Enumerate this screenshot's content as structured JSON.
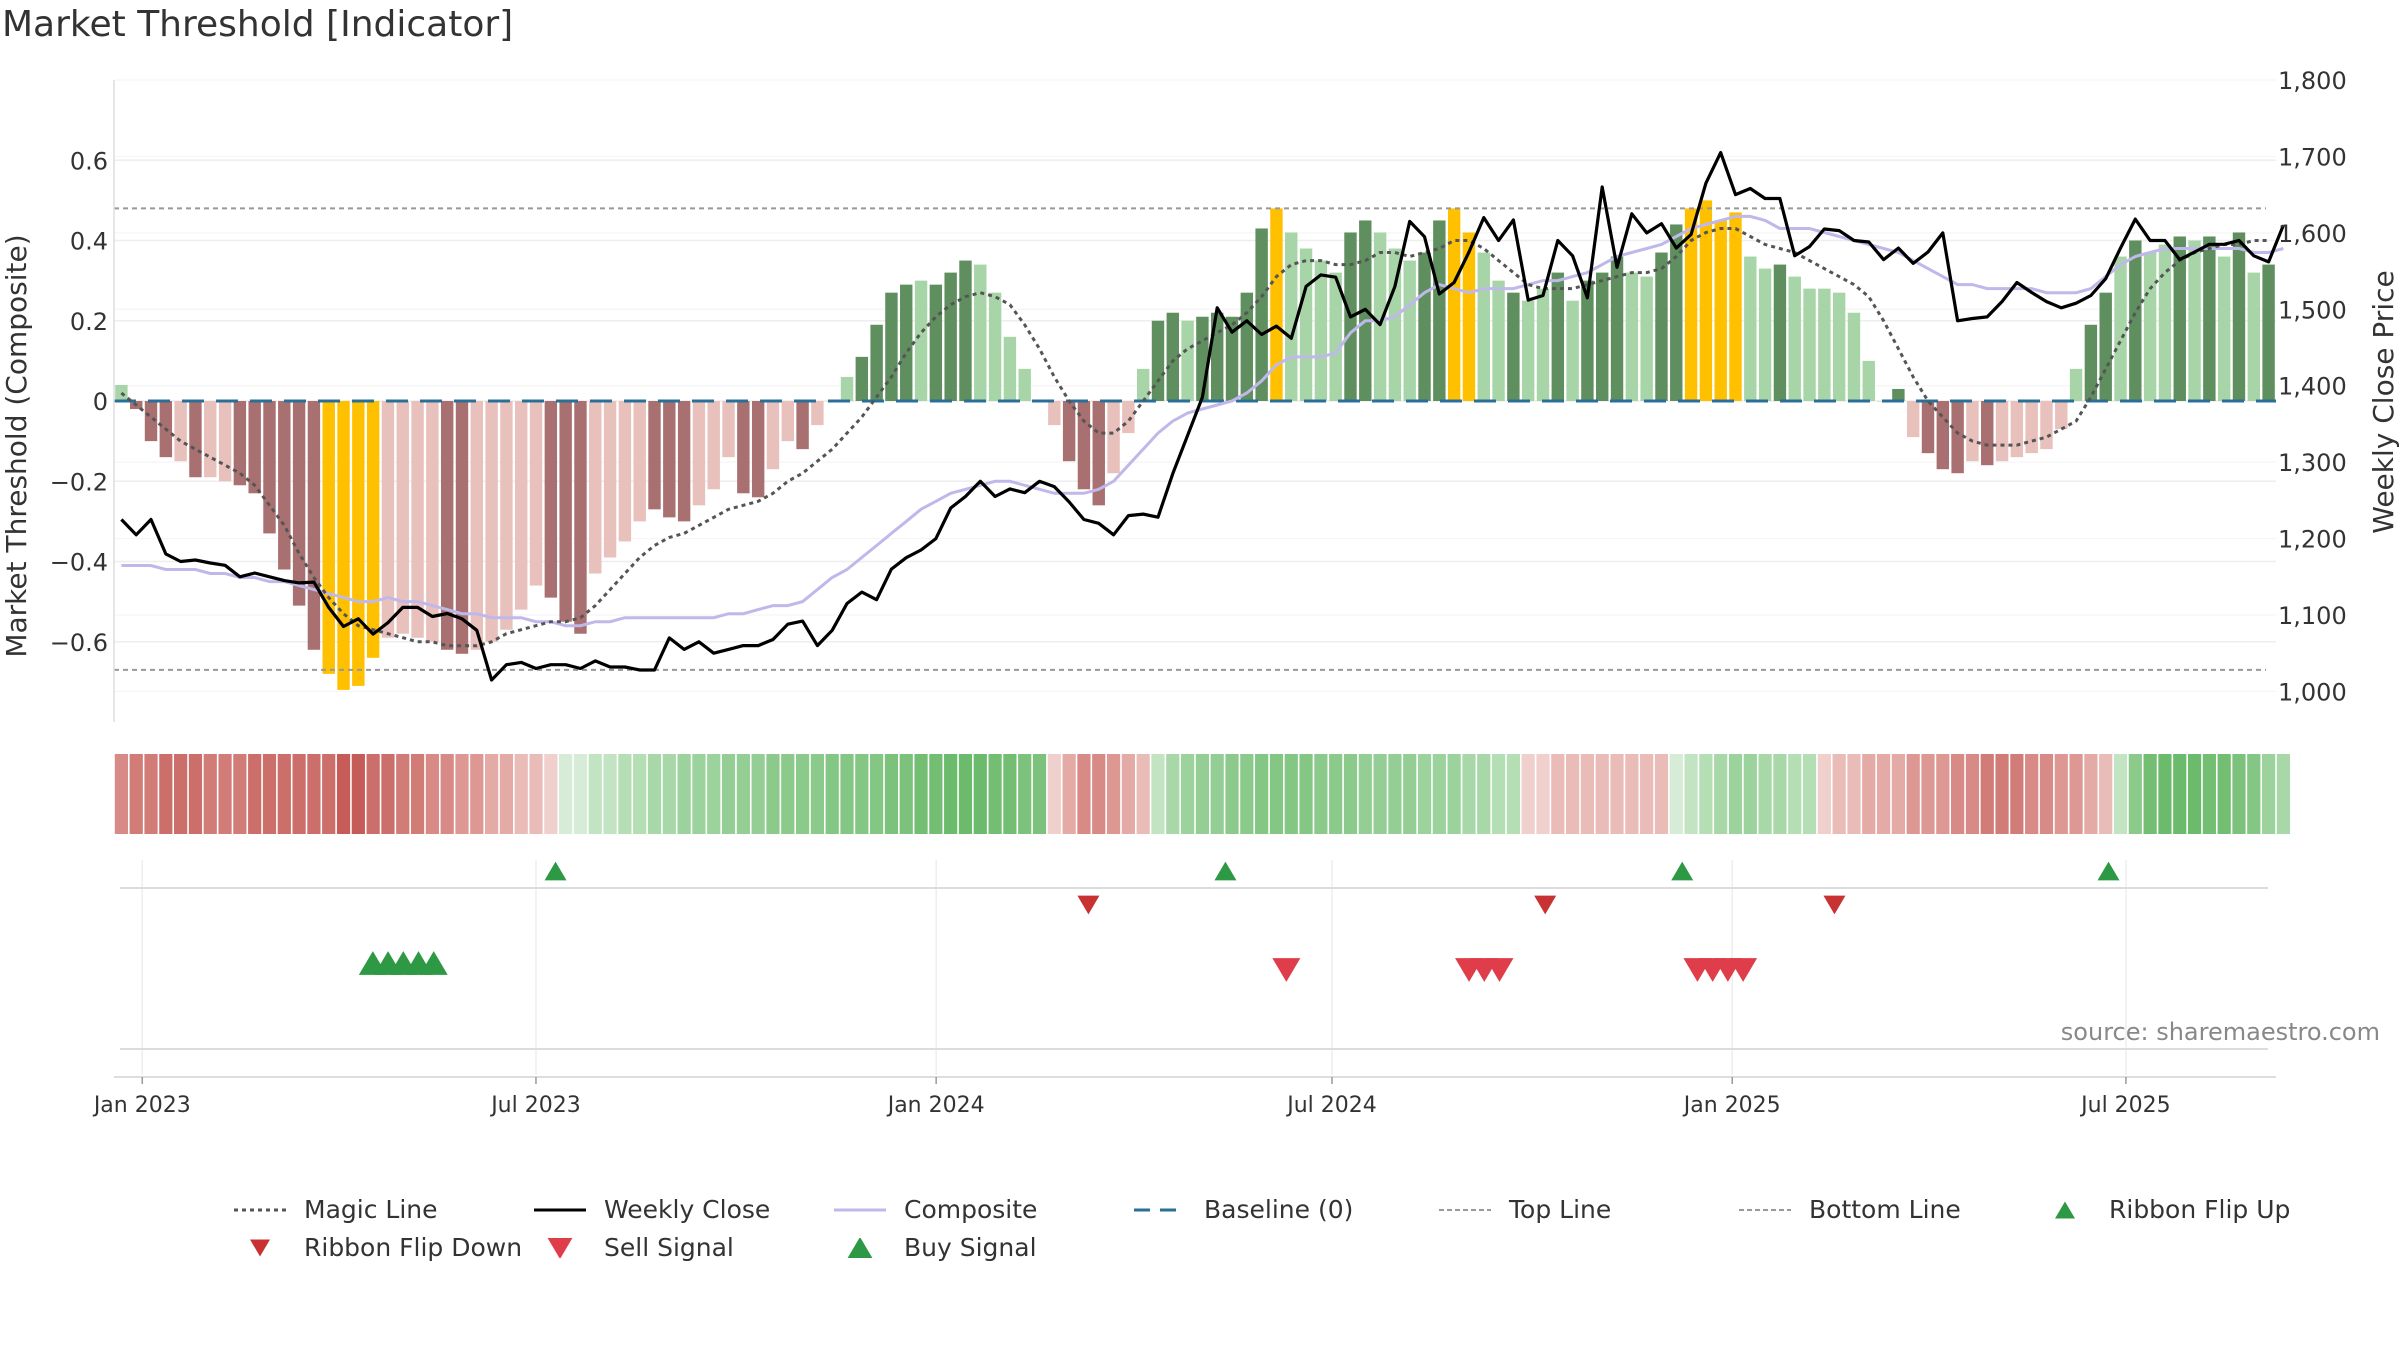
{
  "chart_data": {
    "type": "bar",
    "title": "Market Threshold [Indicator]",
    "source": "source: sharemaestro.com",
    "y_left": {
      "label": "Market Threshold (Composite)",
      "range": [
        -0.8,
        0.8
      ],
      "ticks": [
        0.6,
        0.4,
        0.2,
        0,
        -0.2,
        -0.4,
        -0.6
      ],
      "tick_labels": [
        "0.6",
        "0.4",
        "0.2",
        "0",
        "−0.2",
        "−0.4",
        "−0.6"
      ]
    },
    "y_right": {
      "label": "Weekly Close Price",
      "range": [
        960,
        1800
      ],
      "ticks": [
        1000,
        1100,
        1200,
        1300,
        1400,
        1500,
        1600,
        1700,
        1800
      ],
      "tick_labels": [
        "1,000",
        "1,100",
        "1,200",
        "1,300",
        "1,400",
        "1,500",
        "1,600",
        "1,700",
        "1,800"
      ]
    },
    "x_axis": {
      "start": "2022-12-19",
      "end": "2025-09-08",
      "ticks": [
        "2023-01-01",
        "2023-07-01",
        "2024-01-01",
        "2024-07-01",
        "2025-01-01",
        "2025-07-01"
      ],
      "tick_labels": [
        "Jan 2023",
        "Jul 2023",
        "Jan 2024",
        "Jul 2024",
        "Jan 2025",
        "Jul 2025"
      ]
    },
    "top_line": 0.48,
    "bottom_line": -0.67,
    "composite_bars": [
      0.04,
      -0.02,
      -0.1,
      -0.14,
      -0.15,
      -0.19,
      -0.19,
      -0.2,
      -0.21,
      -0.23,
      -0.33,
      -0.42,
      -0.51,
      -0.62,
      -0.68,
      -0.72,
      -0.71,
      -0.64,
      -0.59,
      -0.58,
      -0.59,
      -0.6,
      -0.62,
      -0.63,
      -0.62,
      -0.6,
      -0.57,
      -0.52,
      -0.46,
      -0.49,
      -0.55,
      -0.58,
      -0.43,
      -0.39,
      -0.35,
      -0.3,
      -0.27,
      -0.29,
      -0.3,
      -0.26,
      -0.22,
      -0.14,
      -0.23,
      -0.24,
      -0.17,
      -0.1,
      -0.12,
      -0.06,
      0.0,
      0.06,
      0.11,
      0.19,
      0.27,
      0.29,
      0.3,
      0.29,
      0.32,
      0.35,
      0.34,
      0.27,
      0.16,
      0.08,
      0.0,
      -0.06,
      -0.15,
      -0.22,
      -0.26,
      -0.18,
      -0.08,
      0.08,
      0.2,
      0.22,
      0.2,
      0.21,
      0.22,
      0.21,
      0.27,
      0.43,
      0.48,
      0.42,
      0.38,
      0.35,
      0.32,
      0.42,
      0.45,
      0.42,
      0.38,
      0.35,
      0.37,
      0.45,
      0.48,
      0.42,
      0.37,
      0.3,
      0.27,
      0.25,
      0.28,
      0.32,
      0.25,
      0.3,
      0.32,
      0.36,
      0.32,
      0.31,
      0.37,
      0.44,
      0.48,
      0.5,
      0.45,
      0.47,
      0.36,
      0.33,
      0.34,
      0.31,
      0.28,
      0.28,
      0.27,
      0.22,
      0.1,
      0.0,
      0.03,
      -0.09,
      -0.13,
      -0.17,
      -0.18,
      -0.15,
      -0.16,
      -0.15,
      -0.14,
      -0.13,
      -0.12,
      -0.07,
      0.08,
      0.19,
      0.27,
      0.36,
      0.4,
      0.37,
      0.39,
      0.41,
      0.4,
      0.41,
      0.36,
      0.42,
      0.32,
      0.34
    ],
    "bar_colors": [
      "#a8d5a8",
      "#a87070",
      "#a87070",
      "#a87070",
      "#e8c0bc",
      "#a87070",
      "#e8c0bc",
      "#e8c0bc",
      "#a87070",
      "#a87070",
      "#a87070",
      "#a87070",
      "#a87070",
      "#a87070",
      "#ffc000",
      "#ffc000",
      "#ffc000",
      "#ffc000",
      "#e8c0bc",
      "#e8c0bc",
      "#e8c0bc",
      "#e8c0bc",
      "#a87070",
      "#a87070",
      "#e8c0bc",
      "#e8c0bc",
      "#e8c0bc",
      "#e8c0bc",
      "#e8c0bc",
      "#a87070",
      "#a87070",
      "#a87070",
      "#e8c0bc",
      "#e8c0bc",
      "#e8c0bc",
      "#e8c0bc",
      "#a87070",
      "#a87070",
      "#a87070",
      "#e8c0bc",
      "#e8c0bc",
      "#e8c0bc",
      "#a87070",
      "#a87070",
      "#e8c0bc",
      "#e8c0bc",
      "#a87070",
      "#e8c0bc",
      "#a8d5a8",
      "#a8d5a8",
      "#5f8f5f",
      "#5f8f5f",
      "#5f8f5f",
      "#5f8f5f",
      "#a8d5a8",
      "#5f8f5f",
      "#5f8f5f",
      "#5f8f5f",
      "#a8d5a8",
      "#a8d5a8",
      "#a8d5a8",
      "#a8d5a8",
      "#a8d5a8",
      "#e8c0bc",
      "#a87070",
      "#a87070",
      "#a87070",
      "#e8c0bc",
      "#e8c0bc",
      "#a8d5a8",
      "#5f8f5f",
      "#5f8f5f",
      "#a8d5a8",
      "#5f8f5f",
      "#5f8f5f",
      "#5f8f5f",
      "#5f8f5f",
      "#5f8f5f",
      "#ffc000",
      "#a8d5a8",
      "#a8d5a8",
      "#a8d5a8",
      "#a8d5a8",
      "#5f8f5f",
      "#5f8f5f",
      "#a8d5a8",
      "#a8d5a8",
      "#a8d5a8",
      "#5f8f5f",
      "#5f8f5f",
      "#ffc000",
      "#ffc000",
      "#a8d5a8",
      "#a8d5a8",
      "#5f8f5f",
      "#a8d5a8",
      "#a8d5a8",
      "#5f8f5f",
      "#a8d5a8",
      "#5f8f5f",
      "#5f8f5f",
      "#5f8f5f",
      "#a8d5a8",
      "#a8d5a8",
      "#5f8f5f",
      "#5f8f5f",
      "#ffc000",
      "#ffc000",
      "#ffc000",
      "#ffc000",
      "#a8d5a8",
      "#a8d5a8",
      "#5f8f5f",
      "#a8d5a8",
      "#a8d5a8",
      "#a8d5a8",
      "#a8d5a8",
      "#a8d5a8",
      "#a8d5a8",
      "#a8d5a8",
      "#5f8f5f",
      "#e8c0bc",
      "#a87070",
      "#a87070",
      "#a87070",
      "#e8c0bc",
      "#a87070",
      "#e8c0bc",
      "#e8c0bc",
      "#e8c0bc",
      "#e8c0bc",
      "#e8c0bc",
      "#a8d5a8",
      "#5f8f5f",
      "#5f8f5f",
      "#a8d5a8",
      "#5f8f5f",
      "#a8d5a8",
      "#a8d5a8",
      "#5f8f5f",
      "#a8d5a8",
      "#5f8f5f",
      "#a8d5a8",
      "#5f8f5f",
      "#a8d5a8",
      "#5f8f5f"
    ],
    "ribbon_colors": [
      "#d88a86",
      "#d27c78",
      "#d27c78",
      "#cc6e6a",
      "#cc6e6a",
      "#cc6e6a",
      "#d27c78",
      "#d27c78",
      "#d27c78",
      "#cc6e6a",
      "#cc6e6a",
      "#cc6e6a",
      "#cc6e6a",
      "#cc6e6a",
      "#cc6e6a",
      "#c65c58",
      "#c65c58",
      "#cc6e6a",
      "#cc6e6a",
      "#d27c78",
      "#d27c78",
      "#d88a86",
      "#d88a86",
      "#de9894",
      "#de9894",
      "#e4aaa6",
      "#e4aaa6",
      "#eabcb8",
      "#eabcb8",
      "#f0d0cc",
      "#d6ecd6",
      "#d6ecd6",
      "#c2e4c2",
      "#c2e4c2",
      "#b4deb4",
      "#b4deb4",
      "#a8d8a8",
      "#a8d8a8",
      "#9cd29c",
      "#9cd29c",
      "#9cd29c",
      "#94ce94",
      "#94ce94",
      "#94ce94",
      "#8cca8c",
      "#8cca8c",
      "#8cca8c",
      "#8cca8c",
      "#84c684",
      "#84c684",
      "#84c684",
      "#84c684",
      "#7cc27c",
      "#7cc27c",
      "#74be74",
      "#74be74",
      "#6cba6c",
      "#6cba6c",
      "#6cba6c",
      "#74be74",
      "#74be74",
      "#7cc27c",
      "#7cc27c",
      "#f0d0cc",
      "#e4aaa6",
      "#d88a86",
      "#d88a86",
      "#de9894",
      "#e4aaa6",
      "#eabcb8",
      "#c2e4c2",
      "#a8d8a8",
      "#9cd29c",
      "#94ce94",
      "#94ce94",
      "#8cca8c",
      "#8cca8c",
      "#84c684",
      "#84c684",
      "#84c684",
      "#84c684",
      "#8cca8c",
      "#8cca8c",
      "#8cca8c",
      "#94ce94",
      "#94ce94",
      "#94ce94",
      "#94ce94",
      "#9cd29c",
      "#9cd29c",
      "#9cd29c",
      "#a8d8a8",
      "#a8d8a8",
      "#b4deb4",
      "#b4deb4",
      "#f0d0cc",
      "#f0d0cc",
      "#eabcb8",
      "#eabcb8",
      "#eabcb8",
      "#eabcb8",
      "#eabcb8",
      "#eabcb8",
      "#eabcb8",
      "#eabcb8",
      "#d6ecd6",
      "#c2e4c2",
      "#b4deb4",
      "#a8d8a8",
      "#9cd29c",
      "#9cd29c",
      "#a8d8a8",
      "#a8d8a8",
      "#b4deb4",
      "#b4deb4",
      "#f0d0cc",
      "#eabcb8",
      "#eabcb8",
      "#e4aaa6",
      "#e4aaa6",
      "#e4aaa6",
      "#de9894",
      "#de9894",
      "#de9894",
      "#d88a86",
      "#d88a86",
      "#d27c78",
      "#d27c78",
      "#d27c78",
      "#d88a86",
      "#d88a86",
      "#de9894",
      "#de9894",
      "#e4aaa6",
      "#eabcb8",
      "#c2e4c2",
      "#8cca8c",
      "#74be74",
      "#6cba6c",
      "#6cba6c",
      "#6cba6c",
      "#74be74",
      "#74be74",
      "#7cc27c",
      "#84c684",
      "#9cd29c",
      "#a8d8a8"
    ],
    "magic_line": [
      0.02,
      -0.01,
      -0.04,
      -0.07,
      -0.1,
      -0.12,
      -0.14,
      -0.16,
      -0.18,
      -0.21,
      -0.26,
      -0.31,
      -0.38,
      -0.44,
      -0.49,
      -0.53,
      -0.56,
      -0.57,
      -0.58,
      -0.59,
      -0.6,
      -0.6,
      -0.61,
      -0.61,
      -0.61,
      -0.6,
      -0.58,
      -0.57,
      -0.56,
      -0.55,
      -0.55,
      -0.54,
      -0.51,
      -0.47,
      -0.43,
      -0.39,
      -0.36,
      -0.34,
      -0.33,
      -0.31,
      -0.29,
      -0.27,
      -0.26,
      -0.25,
      -0.23,
      -0.2,
      -0.18,
      -0.15,
      -0.12,
      -0.08,
      -0.04,
      0.01,
      0.06,
      0.12,
      0.17,
      0.21,
      0.24,
      0.26,
      0.27,
      0.26,
      0.24,
      0.19,
      0.13,
      0.06,
      0.0,
      -0.05,
      -0.08,
      -0.08,
      -0.05,
      0.0,
      0.05,
      0.1,
      0.13,
      0.15,
      0.17,
      0.19,
      0.22,
      0.26,
      0.31,
      0.34,
      0.35,
      0.35,
      0.34,
      0.34,
      0.35,
      0.37,
      0.37,
      0.36,
      0.37,
      0.38,
      0.4,
      0.4,
      0.38,
      0.35,
      0.32,
      0.29,
      0.28,
      0.28,
      0.28,
      0.29,
      0.3,
      0.31,
      0.32,
      0.32,
      0.33,
      0.36,
      0.4,
      0.42,
      0.43,
      0.43,
      0.41,
      0.39,
      0.38,
      0.37,
      0.35,
      0.33,
      0.31,
      0.29,
      0.26,
      0.2,
      0.13,
      0.06,
      0.0,
      -0.04,
      -0.08,
      -0.1,
      -0.11,
      -0.11,
      -0.11,
      -0.1,
      -0.09,
      -0.07,
      -0.05,
      0.01,
      0.08,
      0.15,
      0.22,
      0.28,
      0.32,
      0.35,
      0.37,
      0.38,
      0.39,
      0.39,
      0.4,
      0.4
    ],
    "weekly_close": [
      1225,
      1205,
      1225,
      1180,
      1170,
      1172,
      1168,
      1165,
      1150,
      1155,
      1150,
      1145,
      1142,
      1143,
      1110,
      1085,
      1095,
      1075,
      1090,
      1110,
      1110,
      1098,
      1102,
      1095,
      1080,
      1015,
      1035,
      1038,
      1030,
      1035,
      1035,
      1030,
      1040,
      1032,
      1032,
      1028,
      1028,
      1070,
      1055,
      1065,
      1050,
      1055,
      1060,
      1060,
      1068,
      1088,
      1092,
      1060,
      1080,
      1115,
      1130,
      1120,
      1160,
      1175,
      1185,
      1200,
      1240,
      1255,
      1275,
      1255,
      1265,
      1260,
      1275,
      1268,
      1248,
      1225,
      1220,
      1205,
      1230,
      1232,
      1228,
      1285,
      1335,
      1385,
      1502,
      1470,
      1485,
      1467,
      1478,
      1462,
      1530,
      1545,
      1542,
      1490,
      1500,
      1480,
      1530,
      1615,
      1595,
      1520,
      1535,
      1575,
      1620,
      1590,
      1617,
      1512,
      1518,
      1590,
      1570,
      1515,
      1660,
      1555,
      1625,
      1600,
      1612,
      1580,
      1598,
      1665,
      1705,
      1650,
      1658,
      1645,
      1645,
      1570,
      1582,
      1605,
      1603,
      1590,
      1588,
      1565,
      1580,
      1560,
      1575,
      1600,
      1485,
      1488,
      1490,
      1510,
      1535,
      1522,
      1510,
      1502,
      1508,
      1518,
      1540,
      1580,
      1618,
      1590,
      1590,
      1565,
      1575,
      1585,
      1585,
      1590,
      1570,
      1562,
      1610
    ],
    "composite_line": [
      -0.41,
      -0.41,
      -0.41,
      -0.42,
      -0.42,
      -0.42,
      -0.43,
      -0.43,
      -0.44,
      -0.44,
      -0.45,
      -0.45,
      -0.46,
      -0.47,
      -0.48,
      -0.49,
      -0.5,
      -0.5,
      -0.49,
      -0.5,
      -0.5,
      -0.51,
      -0.52,
      -0.53,
      -0.53,
      -0.54,
      -0.54,
      -0.54,
      -0.55,
      -0.55,
      -0.56,
      -0.56,
      -0.55,
      -0.55,
      -0.54,
      -0.54,
      -0.54,
      -0.54,
      -0.54,
      -0.54,
      -0.54,
      -0.53,
      -0.53,
      -0.52,
      -0.51,
      -0.51,
      -0.5,
      -0.47,
      -0.44,
      -0.42,
      -0.39,
      -0.36,
      -0.33,
      -0.3,
      -0.27,
      -0.25,
      -0.23,
      -0.22,
      -0.21,
      -0.2,
      -0.2,
      -0.21,
      -0.22,
      -0.23,
      -0.23,
      -0.23,
      -0.22,
      -0.2,
      -0.16,
      -0.12,
      -0.08,
      -0.05,
      -0.03,
      -0.02,
      -0.01,
      0.0,
      0.02,
      0.05,
      0.09,
      0.11,
      0.11,
      0.11,
      0.12,
      0.17,
      0.2,
      0.2,
      0.21,
      0.24,
      0.27,
      0.29,
      0.28,
      0.27,
      0.28,
      0.28,
      0.28,
      0.29,
      0.3,
      0.3,
      0.31,
      0.32,
      0.34,
      0.36,
      0.37,
      0.38,
      0.39,
      0.41,
      0.43,
      0.44,
      0.45,
      0.46,
      0.46,
      0.45,
      0.43,
      0.43,
      0.43,
      0.42,
      0.41,
      0.4,
      0.39,
      0.38,
      0.37,
      0.35,
      0.33,
      0.31,
      0.29,
      0.29,
      0.28,
      0.28,
      0.28,
      0.28,
      0.27,
      0.27,
      0.27,
      0.28,
      0.31,
      0.34,
      0.36,
      0.37,
      0.38,
      0.38,
      0.38,
      0.38,
      0.38,
      0.38,
      0.37,
      0.37,
      0.38
    ],
    "signals": {
      "ribbon_flip_up": [
        "2023-07-10",
        "2024-05-13",
        "2024-12-09",
        "2025-06-23"
      ],
      "ribbon_flip_down": [
        "2024-03-11",
        "2024-10-07",
        "2025-02-17"
      ],
      "buy_signal": [
        "2023-04-17",
        "2023-04-24",
        "2023-05-01",
        "2023-05-08",
        "2023-05-15"
      ],
      "sell_signal": [
        "2024-06-10",
        "2024-09-02",
        "2024-09-09",
        "2024-09-16",
        "2024-12-16",
        "2024-12-23",
        "2024-12-30",
        "2025-01-06"
      ]
    },
    "legend": {
      "placement": "bottom",
      "items": [
        {
          "label": "Magic Line",
          "symbol": "dotted",
          "color": "#555555"
        },
        {
          "label": "Weekly Close",
          "symbol": "line",
          "color": "#000000"
        },
        {
          "label": "Composite",
          "symbol": "line",
          "color": "#c0b8ea"
        },
        {
          "label": "Baseline (0)",
          "symbol": "dashed",
          "color": "#2a6f97"
        },
        {
          "label": "Top Line",
          "symbol": "dotted-thin",
          "color": "#999999"
        },
        {
          "label": "Bottom Line",
          "symbol": "dotted-thin",
          "color": "#999999"
        },
        {
          "label": "Ribbon Flip Up",
          "symbol": "triangle-up",
          "color": "#2e9944"
        },
        {
          "label": "Ribbon Flip Down",
          "symbol": "triangle-down",
          "color": "#c83232"
        },
        {
          "label": "Sell Signal",
          "symbol": "triangle-down-lg",
          "color": "#e03d4b"
        },
        {
          "label": "Buy Signal",
          "symbol": "triangle-up-lg",
          "color": "#2e9944"
        }
      ]
    },
    "colors": {
      "strong_down": "#a87070",
      "weak_down": "#e8c0bc",
      "strong_up": "#5f8f5f",
      "weak_up": "#a8d5a8",
      "extreme": "#ffc000",
      "grid": "#eeeeee"
    }
  }
}
